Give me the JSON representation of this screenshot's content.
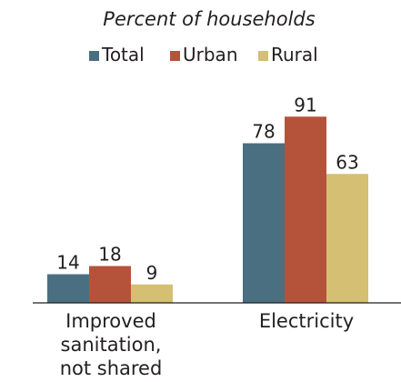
{
  "chart_data": {
    "type": "bar",
    "subtitle": "Percent of households",
    "categories": [
      "Improved sanitation, not shared",
      "Electricity"
    ],
    "category_lines": [
      [
        "Improved",
        "sanitation,",
        "not shared"
      ],
      [
        "Electricity"
      ]
    ],
    "series": [
      {
        "name": "Total",
        "values": [
          14,
          78
        ],
        "color": "#4a6f80"
      },
      {
        "name": "Urban",
        "values": [
          18,
          91
        ],
        "color": "#b5533a"
      },
      {
        "name": "Rural",
        "values": [
          9,
          63
        ],
        "color": "#d4bf72"
      }
    ],
    "ylim": [
      0,
      100
    ],
    "data_labels": true,
    "grid": false,
    "legend_position": "top-center",
    "xlabel": "",
    "ylabel": ""
  }
}
